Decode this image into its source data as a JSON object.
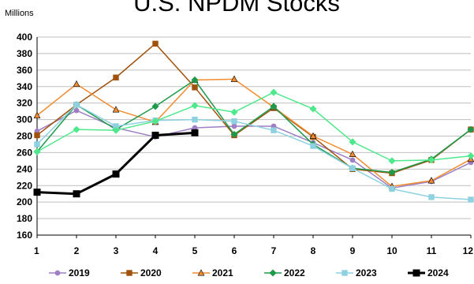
{
  "chart_data": {
    "type": "line",
    "title": "U.S. NPDM Stocks",
    "unit_label": "Millions",
    "x": [
      1,
      2,
      3,
      4,
      5,
      6,
      7,
      8,
      9,
      10,
      11,
      12
    ],
    "xlim": [
      1,
      12
    ],
    "ylim": [
      160,
      400
    ],
    "yticks": [
      160,
      180,
      200,
      220,
      240,
      260,
      280,
      300,
      320,
      340,
      360,
      380,
      400
    ],
    "grid": true,
    "legend": "bottom",
    "series": [
      {
        "name": "2019",
        "color": "#9E7FC4",
        "marker": "circle",
        "width": 1.5,
        "values": [
          286,
          311,
          290,
          279,
          290,
          292,
          292,
          272,
          251,
          217,
          225,
          248
        ]
      },
      {
        "name": "2020",
        "color": "#A0520C",
        "marker": "square",
        "width": 1.5,
        "values": [
          281,
          318,
          351,
          392,
          339,
          281,
          314,
          279,
          240,
          235,
          251,
          288
        ]
      },
      {
        "name": "2021",
        "color": "#F08C32",
        "marker": "triangle",
        "width": 1.5,
        "values": [
          305,
          343,
          312,
          297,
          348,
          349,
          315,
          280,
          258,
          219,
          226,
          252
        ]
      },
      {
        "name": "2022",
        "color": "#1E9A4A",
        "marker": "diamond",
        "width": 1.5,
        "values": [
          261,
          318,
          288,
          316,
          348,
          282,
          316,
          270,
          241,
          236,
          252,
          288
        ]
      },
      {
        "name": "2023",
        "color": "#8ED1E0",
        "marker": "square",
        "width": 1.5,
        "values": [
          270,
          318,
          292,
          299,
          300,
          298,
          287,
          268,
          241,
          216,
          206,
          203
        ]
      },
      {
        "name": "2024",
        "color": "#000000",
        "marker": "square",
        "width": 3,
        "values": [
          212,
          210,
          234,
          281,
          284,
          null,
          null,
          null,
          null,
          null,
          null,
          null
        ]
      },
      {
        "name": "",
        "color": "#4FE88C",
        "marker": "diamond",
        "width": 1.5,
        "legend": false,
        "values": [
          261,
          288,
          287,
          298,
          317,
          309,
          333,
          313,
          273,
          250,
          251,
          256
        ]
      }
    ]
  }
}
